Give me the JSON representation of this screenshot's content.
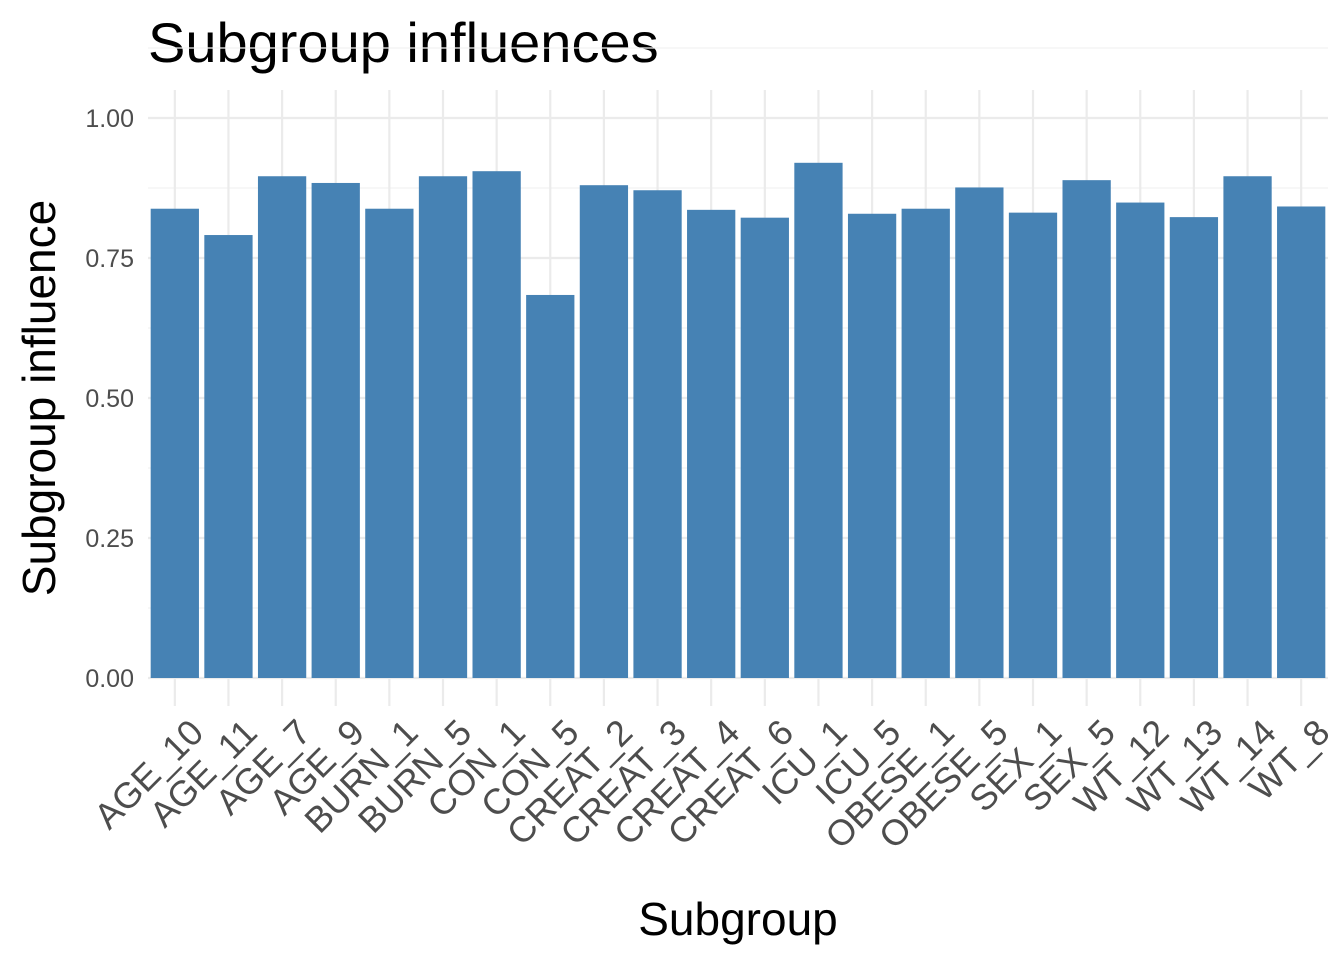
{
  "chart_data": {
    "type": "bar",
    "title": "Subgroup influences",
    "xlabel": "Subgroup",
    "ylabel": "Subgroup influence",
    "categories": [
      "AGE_10",
      "AGE_11",
      "AGE_7",
      "AGE_9",
      "BURN_1",
      "BURN_5",
      "CON_1",
      "CON_5",
      "CREAT_2",
      "CREAT_3",
      "CREAT_4",
      "CREAT_6",
      "ICU_1",
      "ICU_5",
      "OBESE_1",
      "OBESE_5",
      "SEX_1",
      "SEX_5",
      "WT_12",
      "WT_13",
      "WT_14",
      "WT_8"
    ],
    "values": [
      0.838,
      0.791,
      0.896,
      0.884,
      0.838,
      0.896,
      0.905,
      0.684,
      0.88,
      0.871,
      0.836,
      0.822,
      0.92,
      0.829,
      0.838,
      0.876,
      0.831,
      0.889,
      0.849,
      0.823,
      0.896,
      0.842
    ],
    "ylim": [
      0,
      1.05
    ],
    "yticks": [
      "0.00",
      "0.25",
      "0.50",
      "0.75",
      "1.00"
    ],
    "ytick_values": [
      0,
      0.25,
      0.5,
      0.75,
      1.0
    ],
    "grid": true,
    "legend": "none",
    "bar_color": "#4682B4"
  }
}
